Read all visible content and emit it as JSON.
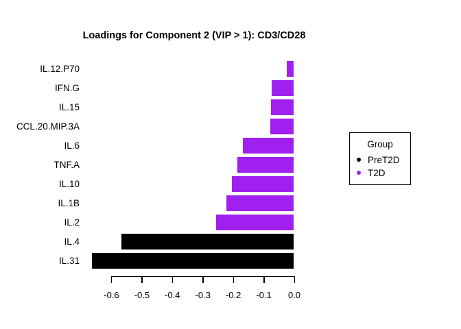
{
  "chart_data": {
    "type": "bar",
    "orientation": "horizontal",
    "title": "Loadings for Component 2 (VIP > 1): CD3/CD28",
    "categories": [
      "IL.12.P70",
      "IFN.G",
      "IL.15",
      "CCL.20.MIP.3A",
      "IL.6",
      "TNF.A",
      "IL.10",
      "IL.1B",
      "IL.2",
      "IL.4",
      "IL.31"
    ],
    "values": [
      -0.024,
      -0.073,
      -0.075,
      -0.078,
      -0.168,
      -0.186,
      -0.204,
      -0.222,
      -0.256,
      -0.567,
      -0.664
    ],
    "bar_groups": [
      "T2D",
      "T2D",
      "T2D",
      "T2D",
      "T2D",
      "T2D",
      "T2D",
      "T2D",
      "T2D",
      "PreT2D",
      "PreT2D"
    ],
    "group_colors": {
      "PreT2D": "#000000",
      "T2D": "#A020F0"
    },
    "xlabel": "",
    "ylabel": "",
    "x_tick_labels": [
      "-0.6",
      "-0.5",
      "-0.4",
      "-0.3",
      "-0.2",
      "-0.1",
      "0.0"
    ],
    "xlim": [
      -0.67,
      0
    ],
    "grid": false,
    "background": "#FFFFFF",
    "legend": {
      "title": "Group",
      "position": "right",
      "items": [
        {
          "label": "PreT2D",
          "color": "#000000"
        },
        {
          "label": "T2D",
          "color": "#A020F0"
        }
      ]
    }
  }
}
